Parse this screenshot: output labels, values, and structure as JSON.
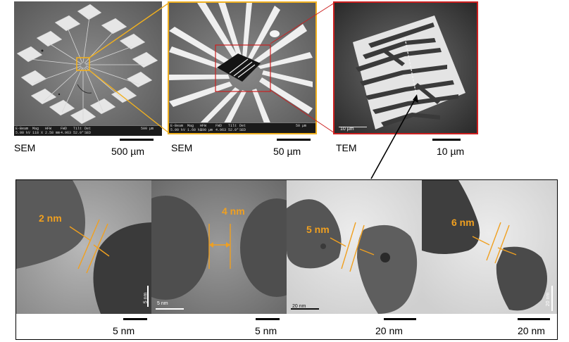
{
  "top_panels": [
    {
      "caption": "SEM",
      "scale_label": "500 µm",
      "infobar": {
        "fields": [
          "E-Beam",
          "Mag",
          "HFW",
          "FWD",
          "Tilt",
          "Det"
        ],
        "values": [
          "5.00 kV",
          "118 X",
          "2.58 mm",
          "4.963",
          "52.0°",
          "SED"
        ],
        "scale": "500 µm"
      }
    },
    {
      "caption": "SEM",
      "scale_label": "50 µm",
      "infobar": {
        "fields": [
          "E-Beam",
          "Mag",
          "HFW",
          "FWD",
          "Tilt",
          "Det"
        ],
        "values": [
          "5.00 kV",
          "1.60 kX",
          "190 µm",
          "4.963",
          "52.0°",
          "SED"
        ],
        "scale": "50 µm"
      }
    },
    {
      "caption": "TEM",
      "scale_label": "10 µm",
      "inset_scale": "10 µm"
    }
  ],
  "bottom_panels": [
    {
      "gap_label": "2 nm",
      "scale_label": "5 nm",
      "inset_scale": "5 nm"
    },
    {
      "gap_label": "4 nm",
      "scale_label": "5 nm",
      "inset_scale": "5 nm"
    },
    {
      "gap_label": "5 nm",
      "scale_label": "20 nm",
      "inset_scale": "20 nm"
    },
    {
      "gap_label": "6 nm",
      "scale_label": "20 nm",
      "inset_scale": "20 nm"
    }
  ],
  "colors": {
    "zoom_box_1": "#f0b020",
    "zoom_box_2": "#cc1f1f",
    "annotation": "#f0a020",
    "arrow": "#000000"
  }
}
